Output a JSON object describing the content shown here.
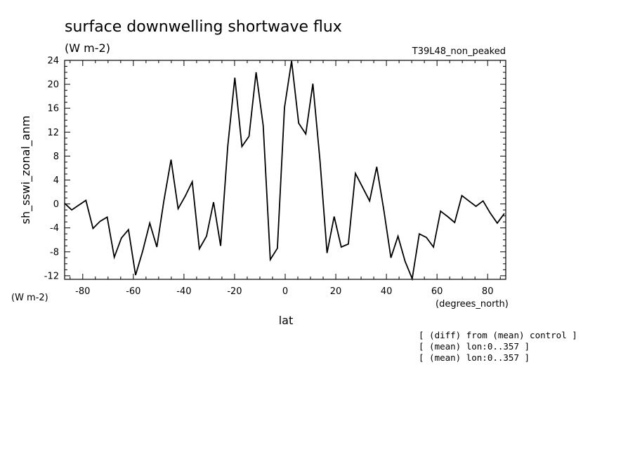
{
  "chart_data": {
    "type": "line",
    "title": "surface downwelling shortwave flux",
    "units_label": "(W m-2)",
    "run_label": "T39L48_non_peaked",
    "ylabel": "sh_sswi_zonal_anm",
    "yunits": "(W m-2)",
    "xlabel": "lat",
    "xunits": "(degrees_north)",
    "notes": [
      "[ (diff) from (mean) control ]",
      "[ (mean) lon:0..357 ]",
      "[ (mean) lon:0..357 ]"
    ],
    "xlim": [
      -87.16,
      87.16
    ],
    "ylim": [
      -12.6,
      24
    ],
    "xticks": [
      -80,
      -60,
      -40,
      -20,
      0,
      20,
      40,
      60,
      80
    ],
    "xticklabels": [
      "-80",
      "-60",
      "-40",
      "-20",
      "0",
      "20",
      "40",
      "60",
      "80"
    ],
    "yticks": [
      -12,
      -8,
      -4,
      0,
      4,
      8,
      12,
      16,
      20,
      24
    ],
    "yticklabels": [
      "-12",
      "-8",
      "-4",
      "0",
      "4",
      "8",
      "12",
      "16",
      "20",
      "24"
    ],
    "grid": false,
    "series": [
      {
        "color": "#000000",
        "x": [
          -87.16,
          -84.35,
          -81.55,
          -78.75,
          -75.95,
          -73.14,
          -70.34,
          -67.54,
          -64.74,
          -61.93,
          -59.13,
          -56.33,
          -53.52,
          -50.72,
          -47.92,
          -45.12,
          -42.31,
          -39.51,
          -36.71,
          -33.91,
          -31.1,
          -28.3,
          -25.5,
          -22.7,
          -19.89,
          -17.09,
          -14.29,
          -11.48,
          -8.68,
          -5.88,
          -3.08,
          -0.27,
          2.53,
          5.33,
          8.14,
          10.94,
          13.74,
          16.54,
          19.35,
          22.15,
          24.95,
          27.76,
          30.56,
          33.36,
          36.16,
          38.97,
          41.77,
          44.57,
          47.37,
          50.18,
          52.98,
          55.78,
          58.59,
          61.39,
          64.19,
          66.99,
          69.8,
          72.6,
          75.4,
          78.2,
          81.01,
          83.81,
          86.61
        ],
        "y": [
          0.1,
          -1.0,
          -0.2,
          0.6,
          -4.1,
          -2.9,
          -2.2,
          -8.9,
          -5.7,
          -4.3,
          -11.9,
          -7.9,
          -3.2,
          -7.2,
          0.6,
          7.4,
          -0.8,
          1.3,
          3.7,
          -7.5,
          -5.4,
          0.3,
          -7.0,
          9.6,
          21.1,
          9.6,
          11.3,
          22.0,
          13.1,
          -9.3,
          -7.4,
          16.1,
          23.9,
          13.5,
          11.7,
          20.1,
          7.3,
          -8.2,
          -2.1,
          -7.2,
          -6.7,
          5.1,
          2.8,
          0.5,
          6.2,
          -1.0,
          -9.0,
          -5.4,
          -9.6,
          -12.5,
          -5.0,
          -5.6,
          -7.2,
          -1.2,
          -2.1,
          -3.1,
          1.4,
          0.5,
          -0.4,
          0.5,
          -1.5,
          -3.2,
          -1.6
        ]
      }
    ]
  }
}
